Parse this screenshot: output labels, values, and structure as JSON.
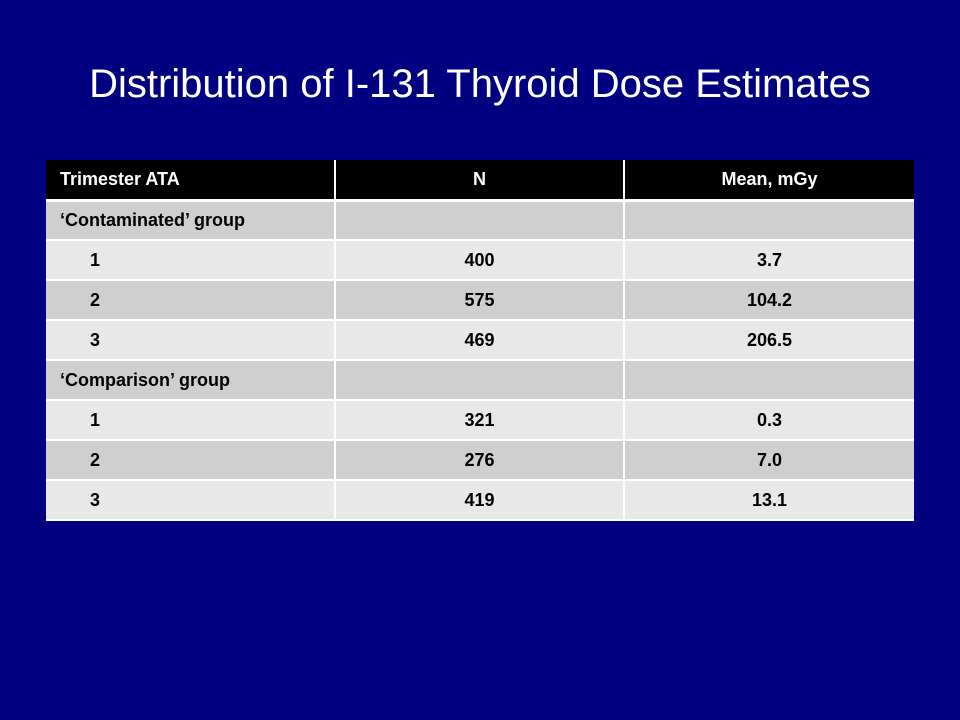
{
  "slide": {
    "title": "Distribution of I-131 Thyroid Dose Estimates"
  },
  "table": {
    "headers": [
      "Trimester ATA",
      "N",
      "Mean, mGy"
    ],
    "rows": [
      {
        "label": "‘Contaminated’ group",
        "n": "",
        "mean": "",
        "is_group": true
      },
      {
        "label": "1",
        "n": "400",
        "mean": "3.7",
        "is_group": false
      },
      {
        "label": "2",
        "n": "575",
        "mean": "104.2",
        "is_group": false
      },
      {
        "label": "3",
        "n": "469",
        "mean": "206.5",
        "is_group": false
      },
      {
        "label": "‘Comparison’ group",
        "n": "",
        "mean": "",
        "is_group": true
      },
      {
        "label": "1",
        "n": "321",
        "mean": "0.3",
        "is_group": false
      },
      {
        "label": "2",
        "n": "276",
        "mean": "7.0",
        "is_group": false
      },
      {
        "label": "3",
        "n": "419",
        "mean": "13.1",
        "is_group": false
      }
    ]
  },
  "colors": {
    "background": "#000080",
    "header_bg": "#000000",
    "row_odd": "#cfcfcf",
    "row_even": "#e8e8e8"
  }
}
